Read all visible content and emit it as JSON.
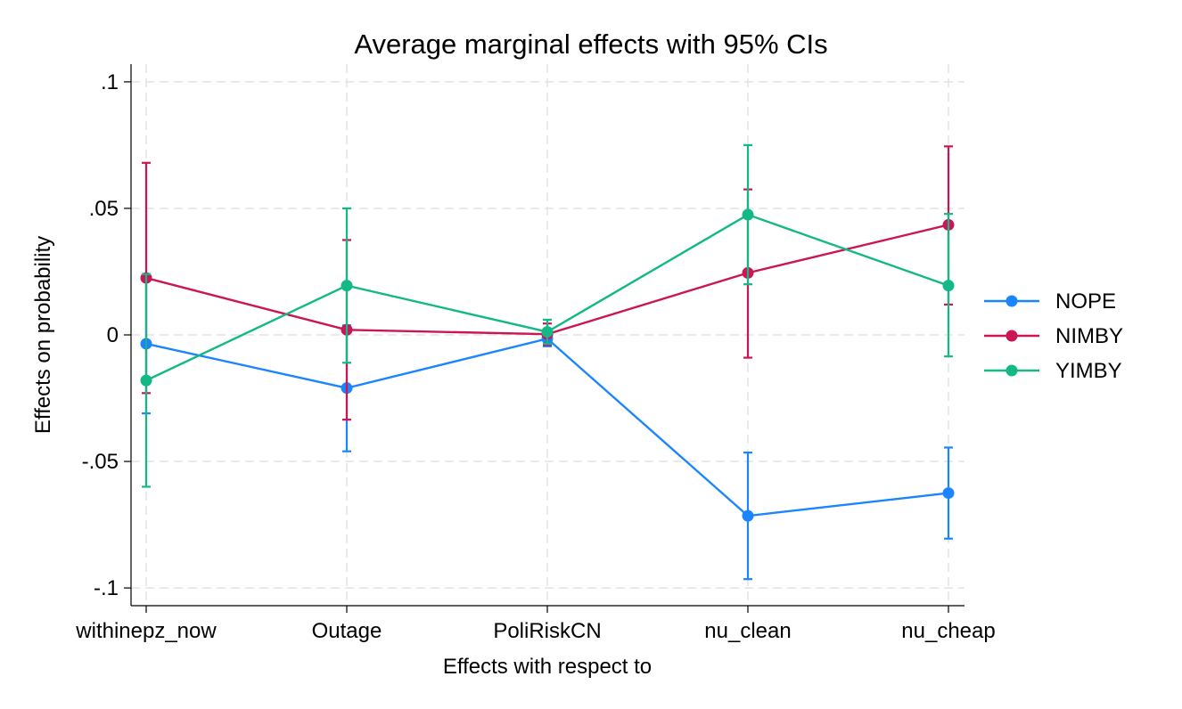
{
  "chart_data": {
    "type": "line",
    "title": "Average marginal effects with 95% CIs",
    "xlabel": "Effects with respect to",
    "ylabel": "Effects on probability",
    "categories": [
      "withinepz_now",
      "Outage",
      "PoliRiskCN",
      "nu_clean",
      "nu_cheap"
    ],
    "ylim": [
      -0.107,
      0.107
    ],
    "yticks": [
      0.1,
      0.05,
      0,
      -0.05,
      -0.1
    ],
    "ytick_labels": [
      ".1",
      ".05",
      "0",
      "-.05",
      "-.1"
    ],
    "grid": true,
    "legend_position": "right",
    "series": [
      {
        "name": "NOPE",
        "color": "#1a85ff",
        "values": [
          -0.0035,
          -0.021,
          -0.0015,
          -0.0715,
          -0.0625
        ],
        "ci_low": [
          -0.031,
          -0.046,
          -0.0045,
          -0.0965,
          -0.0805
        ],
        "ci_high": [
          0.024,
          0.0038,
          0.0015,
          -0.0465,
          -0.0445
        ]
      },
      {
        "name": "NIMBY",
        "color": "#cc1553",
        "values": [
          0.0225,
          0.002,
          0.0003,
          0.0245,
          0.0435
        ],
        "ci_low": [
          -0.023,
          -0.0335,
          -0.004,
          -0.009,
          0.012
        ],
        "ci_high": [
          0.068,
          0.0375,
          0.0045,
          0.0575,
          0.0745
        ]
      },
      {
        "name": "YIMBY",
        "color": "#12b886",
        "values": [
          -0.018,
          0.0195,
          0.0012,
          0.0475,
          0.0195
        ],
        "ci_low": [
          -0.06,
          -0.011,
          -0.0035,
          0.02,
          -0.0085
        ],
        "ci_high": [
          0.024,
          0.05,
          0.006,
          0.075,
          0.0478
        ]
      }
    ]
  }
}
